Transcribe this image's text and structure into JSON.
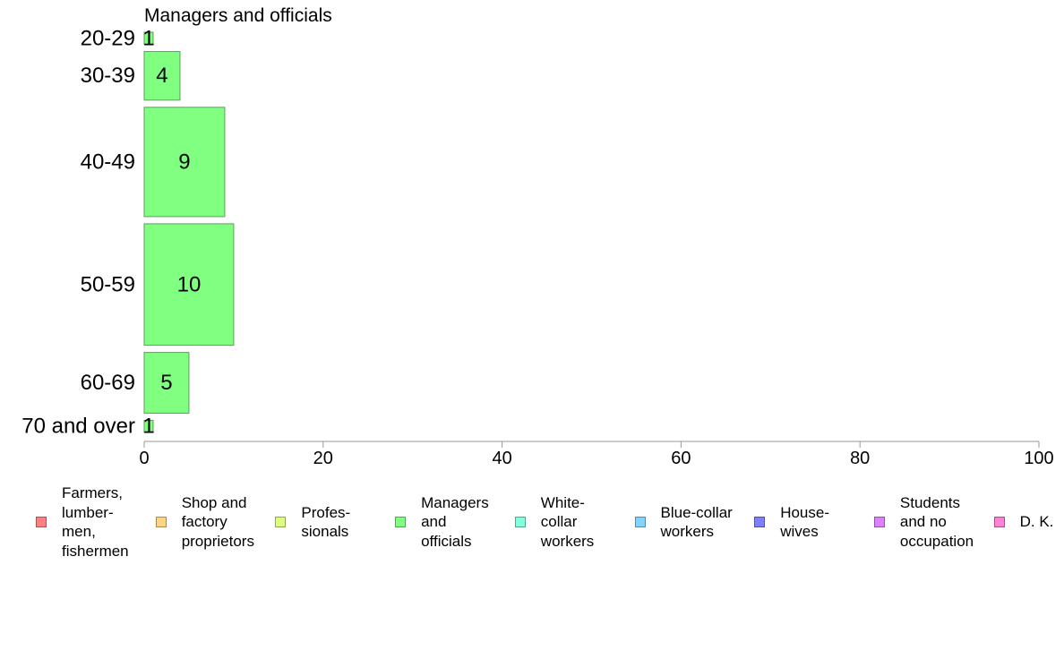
{
  "chart_data": {
    "type": "bar",
    "orientation": "horizontal",
    "title": "Managers and officials",
    "categories": [
      "20-29",
      "30-39",
      "40-49",
      "50-59",
      "60-69",
      "70 and over"
    ],
    "values": [
      1,
      4,
      9,
      10,
      5,
      1
    ],
    "xlim": [
      0,
      100
    ],
    "xticks": [
      0,
      20,
      40,
      60,
      80,
      100
    ],
    "bar_color": "#80ff80",
    "bar_stroke": "#5aa05a",
    "grid": false,
    "legend_position": "bottom",
    "legend": [
      {
        "label": "Farmers,\nlumber-\nmen,\nfishermen",
        "color": "#ff8080"
      },
      {
        "label": "Shop and\nfactory\nproprietors",
        "color": "#ffd480"
      },
      {
        "label": "Profes-\nsionals",
        "color": "#ddff80"
      },
      {
        "label": "Managers\nand\nofficials",
        "color": "#80ff80"
      },
      {
        "label": "White-\ncollar\nworkers",
        "color": "#80ffdd"
      },
      {
        "label": "Blue-collar\nworkers",
        "color": "#80d4ff"
      },
      {
        "label": "House-\nwives",
        "color": "#8080ff"
      },
      {
        "label": "Students\nand no\noccupation",
        "color": "#dd80ff"
      },
      {
        "label": "D. K.",
        "color": "#ff80d4"
      }
    ]
  }
}
